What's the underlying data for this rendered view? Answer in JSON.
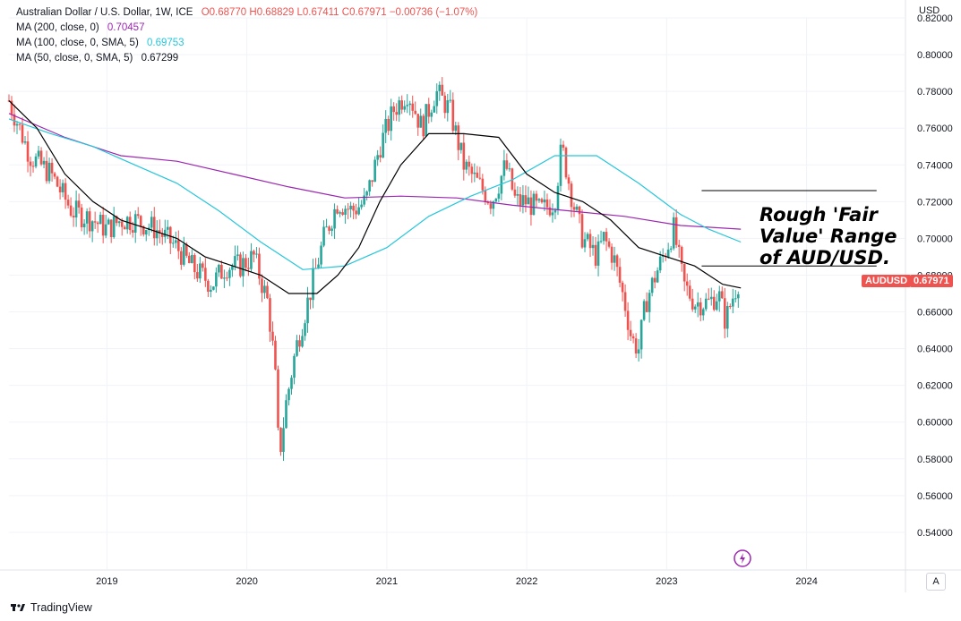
{
  "legend": {
    "title": "Australian Dollar / U.S. Dollar, 1W, ICE",
    "ohlc": "O0.68770  H0.68829  L0.67411  C0.67971  −0.00736 (−1.07%)",
    "ma200_label": "MA (200, close, 0)",
    "ma200_value": "0.70457",
    "ma100_label": "MA (100, close, 0, SMA, 5)",
    "ma100_value": "0.69753",
    "ma50_label": "MA (50, close, 0, SMA, 5)",
    "ma50_value": "0.67299"
  },
  "currency_label": "USD",
  "symbol_tag": "AUDUSD",
  "price_tag": "0.67971",
  "annotation": [
    "Rough 'Fair",
    "Value' Range",
    "of AUD/USD."
  ],
  "auto_button": "A",
  "branding": "TradingView",
  "colors": {
    "up": "#26a69a",
    "down": "#ef5350",
    "ma200": "#9c27b0",
    "ma100": "#26c6da",
    "ma50": "#000000"
  },
  "chart_data": {
    "type": "candlestick",
    "title": "Australian Dollar / U.S. Dollar, 1W, ICE",
    "ylim": [
      0.52,
      0.82
    ],
    "yticks": [
      "0.54000",
      "0.56000",
      "0.58000",
      "0.60000",
      "0.62000",
      "0.64000",
      "0.66000",
      "0.68000",
      "0.70000",
      "0.72000",
      "0.74000",
      "0.76000",
      "0.78000",
      "0.80000",
      "0.82000"
    ],
    "xlim": [
      2018.3,
      2024.7
    ],
    "xticks": [
      {
        "label": "2019",
        "x": 2019
      },
      {
        "label": "2020",
        "x": 2020
      },
      {
        "label": "2021",
        "x": 2021
      },
      {
        "label": "2022",
        "x": 2022
      },
      {
        "label": "2023",
        "x": 2023
      },
      {
        "label": "2024",
        "x": 2024
      }
    ],
    "close_path": [
      [
        2018.3,
        0.775
      ],
      [
        2018.45,
        0.745
      ],
      [
        2018.6,
        0.735
      ],
      [
        2018.75,
        0.715
      ],
      [
        2018.9,
        0.71
      ],
      [
        2019.0,
        0.705
      ],
      [
        2019.1,
        0.71
      ],
      [
        2019.2,
        0.71
      ],
      [
        2019.35,
        0.705
      ],
      [
        2019.5,
        0.695
      ],
      [
        2019.6,
        0.685
      ],
      [
        2019.75,
        0.675
      ],
      [
        2019.85,
        0.685
      ],
      [
        2019.95,
        0.685
      ],
      [
        2020.05,
        0.69
      ],
      [
        2020.15,
        0.665
      ],
      [
        2020.2,
        0.63
      ],
      [
        2020.23,
        0.58
      ],
      [
        2020.28,
        0.61
      ],
      [
        2020.35,
        0.64
      ],
      [
        2020.45,
        0.67
      ],
      [
        2020.55,
        0.7
      ],
      [
        2020.65,
        0.72
      ],
      [
        2020.75,
        0.715
      ],
      [
        2020.85,
        0.72
      ],
      [
        2020.95,
        0.75
      ],
      [
        2021.05,
        0.77
      ],
      [
        2021.15,
        0.78
      ],
      [
        2021.25,
        0.76
      ],
      [
        2021.35,
        0.78
      ],
      [
        2021.45,
        0.77
      ],
      [
        2021.55,
        0.74
      ],
      [
        2021.65,
        0.73
      ],
      [
        2021.75,
        0.72
      ],
      [
        2021.85,
        0.74
      ],
      [
        2021.92,
        0.72
      ],
      [
        2022.0,
        0.72
      ],
      [
        2022.1,
        0.715
      ],
      [
        2022.2,
        0.72
      ],
      [
        2022.25,
        0.75
      ],
      [
        2022.33,
        0.72
      ],
      [
        2022.4,
        0.7
      ],
      [
        2022.5,
        0.69
      ],
      [
        2022.55,
        0.7
      ],
      [
        2022.62,
        0.69
      ],
      [
        2022.7,
        0.665
      ],
      [
        2022.75,
        0.645
      ],
      [
        2022.8,
        0.64
      ],
      [
        2022.85,
        0.665
      ],
      [
        2022.92,
        0.68
      ],
      [
        2023.0,
        0.695
      ],
      [
        2023.05,
        0.705
      ],
      [
        2023.12,
        0.675
      ],
      [
        2023.2,
        0.665
      ],
      [
        2023.3,
        0.665
      ],
      [
        2023.37,
        0.67
      ],
      [
        2023.42,
        0.655
      ],
      [
        2023.48,
        0.67
      ],
      [
        2023.53,
        0.68
      ]
    ],
    "ma50": [
      [
        2018.3,
        0.775
      ],
      [
        2018.5,
        0.76
      ],
      [
        2018.7,
        0.735
      ],
      [
        2018.9,
        0.72
      ],
      [
        2019.1,
        0.71
      ],
      [
        2019.3,
        0.705
      ],
      [
        2019.5,
        0.7
      ],
      [
        2019.7,
        0.69
      ],
      [
        2019.9,
        0.685
      ],
      [
        2020.1,
        0.68
      ],
      [
        2020.3,
        0.67
      ],
      [
        2020.5,
        0.67
      ],
      [
        2020.65,
        0.68
      ],
      [
        2020.8,
        0.695
      ],
      [
        2020.95,
        0.72
      ],
      [
        2021.1,
        0.74
      ],
      [
        2021.3,
        0.757
      ],
      [
        2021.55,
        0.757
      ],
      [
        2021.8,
        0.755
      ],
      [
        2022.0,
        0.735
      ],
      [
        2022.2,
        0.725
      ],
      [
        2022.4,
        0.72
      ],
      [
        2022.6,
        0.71
      ],
      [
        2022.8,
        0.695
      ],
      [
        2023.0,
        0.69
      ],
      [
        2023.2,
        0.685
      ],
      [
        2023.4,
        0.675
      ],
      [
        2023.53,
        0.673
      ]
    ],
    "ma100": [
      [
        2018.3,
        0.765
      ],
      [
        2018.6,
        0.757
      ],
      [
        2018.9,
        0.75
      ],
      [
        2019.2,
        0.74
      ],
      [
        2019.5,
        0.73
      ],
      [
        2019.8,
        0.715
      ],
      [
        2020.1,
        0.698
      ],
      [
        2020.4,
        0.683
      ],
      [
        2020.7,
        0.685
      ],
      [
        2021.0,
        0.695
      ],
      [
        2021.3,
        0.712
      ],
      [
        2021.6,
        0.723
      ],
      [
        2021.9,
        0.732
      ],
      [
        2022.2,
        0.745
      ],
      [
        2022.5,
        0.745
      ],
      [
        2022.8,
        0.73
      ],
      [
        2023.1,
        0.713
      ],
      [
        2023.3,
        0.705
      ],
      [
        2023.53,
        0.698
      ]
    ],
    "ma200": [
      [
        2018.3,
        0.768
      ],
      [
        2018.7,
        0.755
      ],
      [
        2019.1,
        0.745
      ],
      [
        2019.5,
        0.742
      ],
      [
        2019.9,
        0.735
      ],
      [
        2020.3,
        0.728
      ],
      [
        2020.7,
        0.722
      ],
      [
        2021.1,
        0.723
      ],
      [
        2021.5,
        0.722
      ],
      [
        2021.9,
        0.718
      ],
      [
        2022.3,
        0.715
      ],
      [
        2022.7,
        0.712
      ],
      [
        2023.1,
        0.707
      ],
      [
        2023.53,
        0.705
      ]
    ],
    "range_lines": [
      {
        "y": 0.726,
        "x0": 2023.25,
        "x1": 2024.5
      },
      {
        "y": 0.685,
        "x0": 2023.25,
        "x1": 2024.5
      }
    ]
  }
}
